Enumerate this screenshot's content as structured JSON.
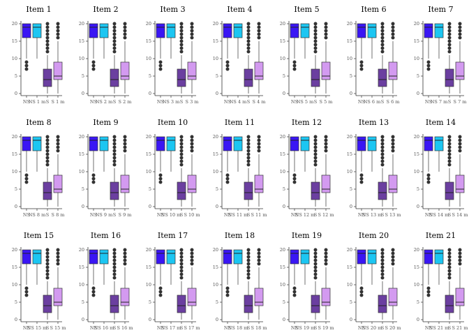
{
  "chart_data": {
    "type": "boxplot",
    "grid": false,
    "legend": "none",
    "ylim": [
      0,
      20
    ],
    "yticks": [
      0,
      5,
      10,
      15,
      20
    ],
    "colors": {
      "NS": "#3a16f4",
      "NS m": "#1cc6f2",
      "S": "#6b3fa0",
      "S m": "#d39af0"
    },
    "box_template": [
      {
        "group": "NS",
        "q1": 16,
        "median": 19,
        "q3": 20,
        "low": 10,
        "high": 20,
        "outliers": [
          7,
          8,
          9
        ]
      },
      {
        "group": "NS m",
        "q1": 16,
        "median": 19,
        "q3": 20,
        "low": 10,
        "high": 20,
        "outliers": []
      },
      {
        "group": "S",
        "q1": 2,
        "median": 4,
        "q3": 7,
        "low": 0,
        "high": 11,
        "outliers": [
          12,
          13,
          14,
          15,
          16,
          17,
          18,
          19,
          20
        ]
      },
      {
        "group": "S m",
        "q1": 4,
        "median": 5,
        "q3": 9,
        "low": 0,
        "high": 15,
        "outliers": [
          16,
          17,
          18,
          19,
          20
        ]
      }
    ],
    "panels": [
      {
        "title": "Item 1",
        "xticks": [
          "NS",
          "NS 1 m",
          "S",
          "S 1 m"
        ]
      },
      {
        "title": "Item 2",
        "xticks": [
          "NS",
          "NS 2 m",
          "S",
          "S 2 m"
        ]
      },
      {
        "title": "Item 3",
        "xticks": [
          "NS",
          "NS 3 m",
          "S",
          "S 3 m"
        ]
      },
      {
        "title": "Item 4",
        "xticks": [
          "NS",
          "NS 4 m",
          "S",
          "S 4 m"
        ]
      },
      {
        "title": "Item 5",
        "xticks": [
          "NS",
          "NS 5 m",
          "S",
          "S 5 m"
        ]
      },
      {
        "title": "Item 6",
        "xticks": [
          "NS",
          "NS 6 m",
          "S",
          "S 6 m"
        ]
      },
      {
        "title": "Item 7",
        "xticks": [
          "NS",
          "NS 7 m",
          "S",
          "S 7 m"
        ]
      },
      {
        "title": "Item 8",
        "xticks": [
          "NS",
          "NS 8 m",
          "S",
          "S 8 m"
        ]
      },
      {
        "title": "Item 9",
        "xticks": [
          "NS",
          "NS 9 m",
          "S",
          "S 9 m"
        ]
      },
      {
        "title": "Item 10",
        "xticks": [
          "NS",
          "NS 10 m",
          "S",
          "S 10 m"
        ]
      },
      {
        "title": "Item 11",
        "xticks": [
          "NS",
          "NS 11 m",
          "S",
          "S 11 m"
        ]
      },
      {
        "title": "Item 12",
        "xticks": [
          "NS",
          "NS 12 m",
          "S",
          "S 12 m"
        ]
      },
      {
        "title": "Item 13",
        "xticks": [
          "NS",
          "NS 13 m",
          "S",
          "S 13 m"
        ]
      },
      {
        "title": "Item 14",
        "xticks": [
          "NS",
          "NS 14 m",
          "S",
          "S 14 m"
        ]
      },
      {
        "title": "Item 15",
        "xticks": [
          "NS",
          "NS 15 m",
          "S",
          "S 15 m"
        ]
      },
      {
        "title": "Item 16",
        "xticks": [
          "NS",
          "NS 16 m",
          "S",
          "S 16 m"
        ]
      },
      {
        "title": "Item 17",
        "xticks": [
          "NS",
          "NS 17 m",
          "S",
          "S 17 m"
        ]
      },
      {
        "title": "Item 18",
        "xticks": [
          "NS",
          "NS 18 m",
          "S",
          "S 18 m"
        ]
      },
      {
        "title": "Item 19",
        "xticks": [
          "NS",
          "NS 19 m",
          "S",
          "S 19 m"
        ]
      },
      {
        "title": "Item 20",
        "xticks": [
          "NS",
          "NS 20 m",
          "S",
          "S 20 m"
        ]
      },
      {
        "title": "Item 21",
        "xticks": [
          "NS",
          "NS 21 m",
          "S",
          "S 21 m"
        ]
      }
    ]
  }
}
